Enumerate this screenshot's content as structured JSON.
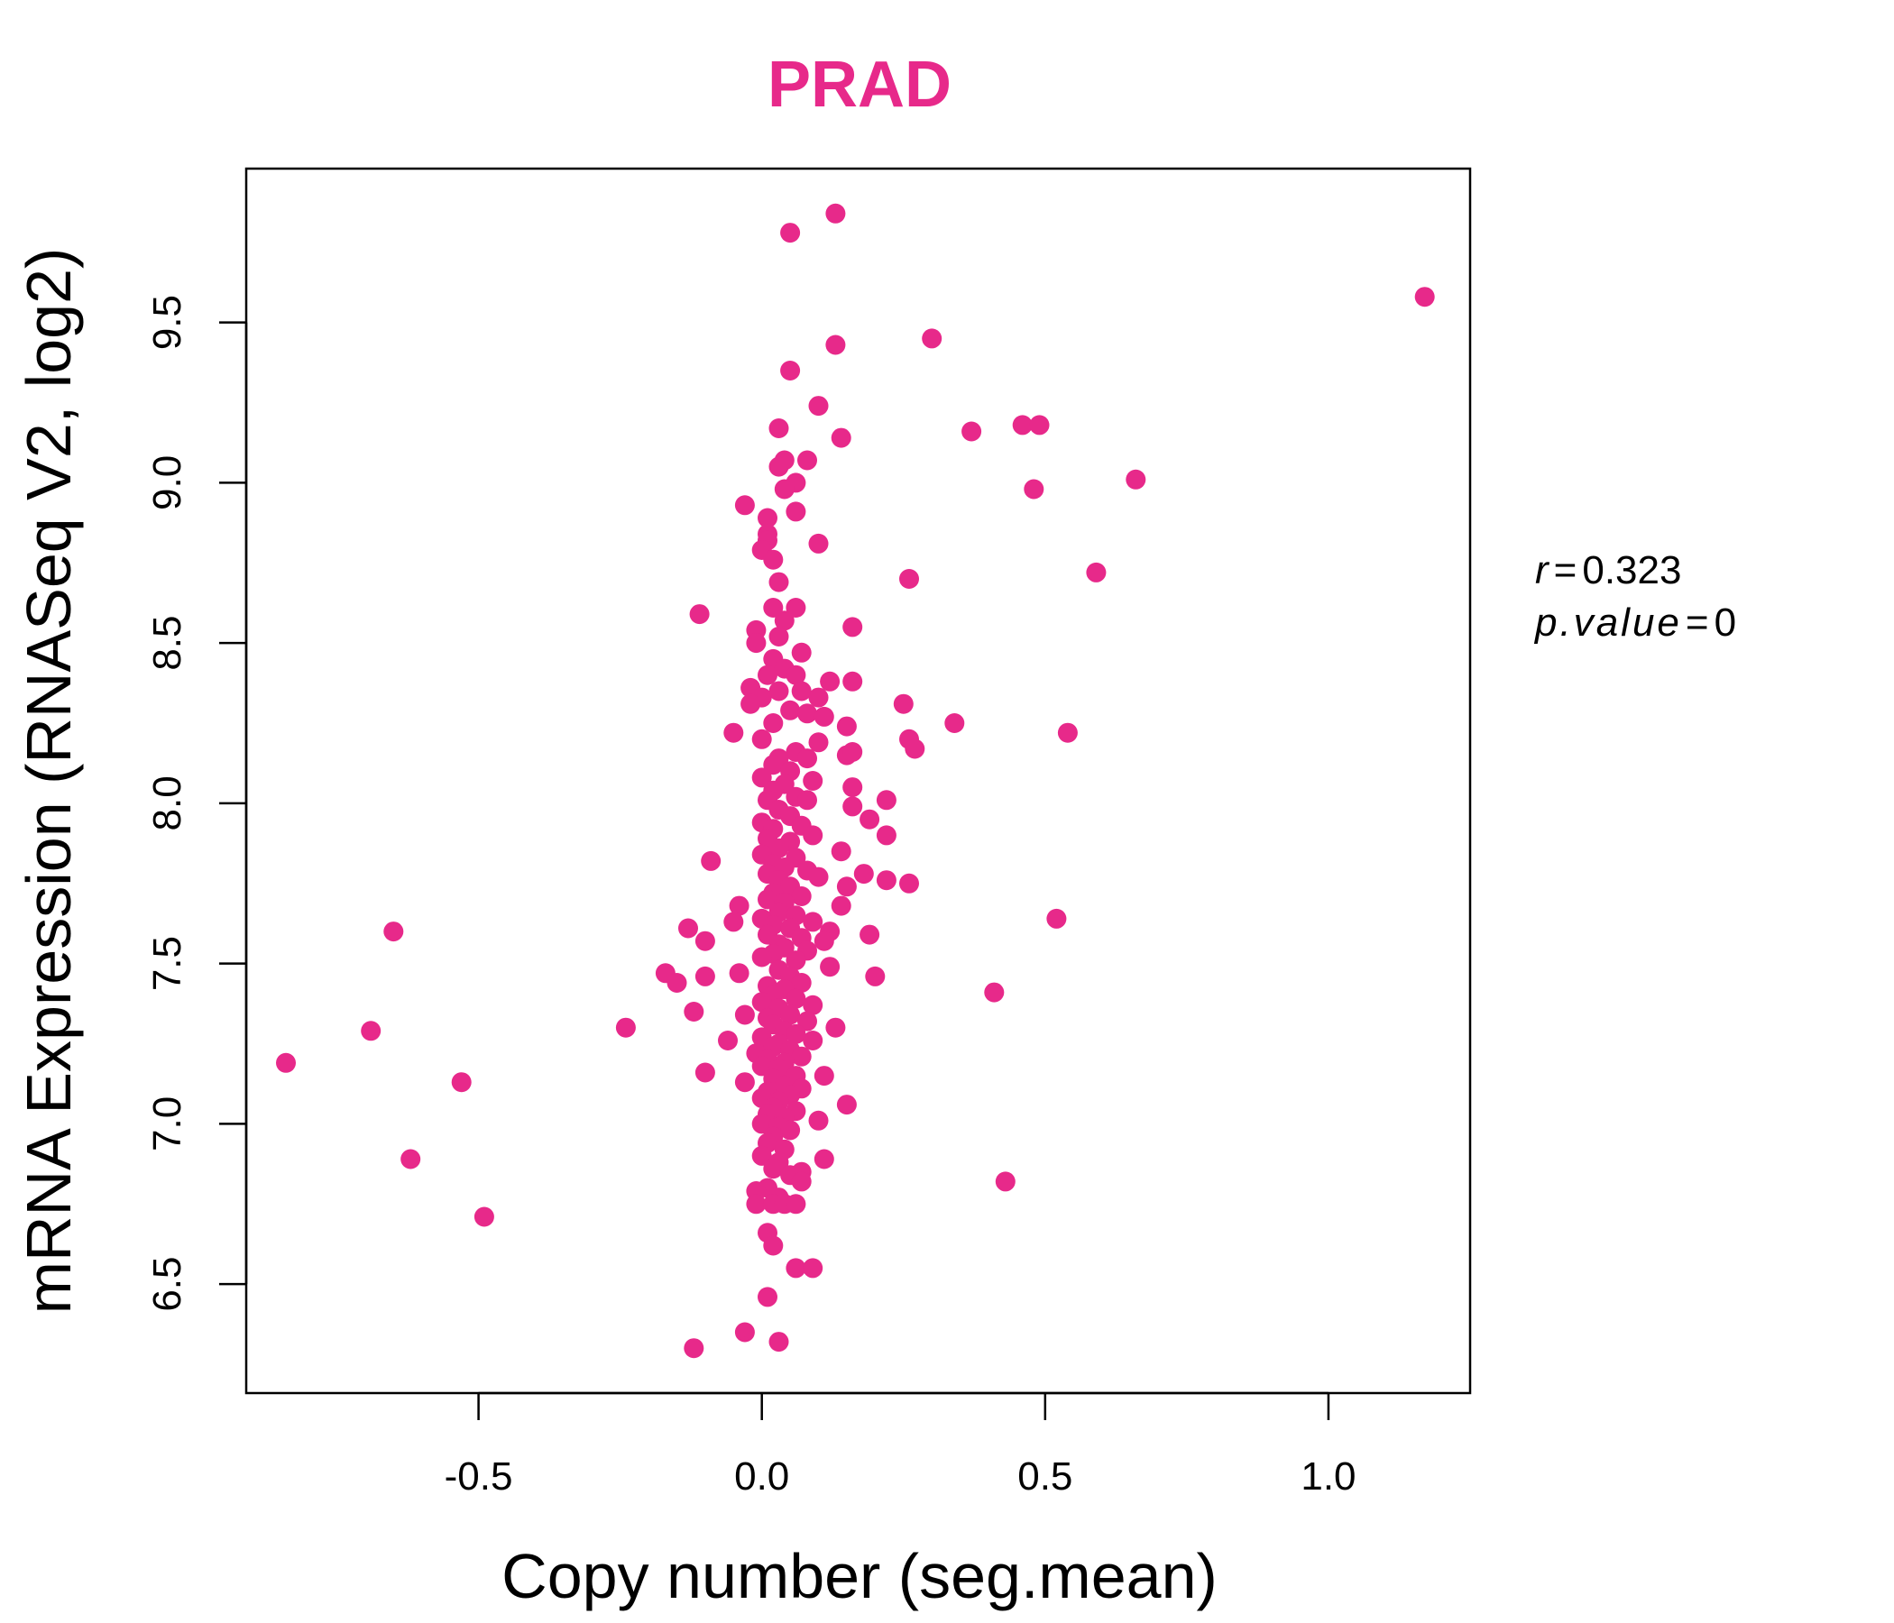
{
  "chart_data": {
    "type": "scatter",
    "title": "PRAD",
    "xlabel": "Copy number (seg.mean)",
    "ylabel": "mRNA Expression (RNASeq V2, log2)",
    "xlim": [
      -0.91,
      1.25
    ],
    "ylim": [
      6.16,
      9.98
    ],
    "xticks": [
      -0.5,
      0.0,
      0.5,
      1.0
    ],
    "xtick_labels": [
      "-0.5",
      "0.0",
      "0.5",
      "1.0"
    ],
    "yticks": [
      6.5,
      7.0,
      7.5,
      8.0,
      8.5,
      9.0,
      9.5
    ],
    "ytick_labels": [
      "6.5",
      "7.0",
      "7.5",
      "8.0",
      "8.5",
      "9.0",
      "9.5"
    ],
    "grid": false,
    "point_color": "#e7298a",
    "annotations": {
      "r_label": "r",
      "r_value": "0.323",
      "p_label": "p.value",
      "p_value": "0"
    },
    "points": [
      [
        0.13,
        9.84
      ],
      [
        0.05,
        9.78
      ],
      [
        1.17,
        9.58
      ],
      [
        0.3,
        9.45
      ],
      [
        0.13,
        9.43
      ],
      [
        0.05,
        9.35
      ],
      [
        0.1,
        9.24
      ],
      [
        0.46,
        9.18
      ],
      [
        0.49,
        9.18
      ],
      [
        0.03,
        9.17
      ],
      [
        0.37,
        9.16
      ],
      [
        0.14,
        9.14
      ],
      [
        0.04,
        9.07
      ],
      [
        0.08,
        9.07
      ],
      [
        0.03,
        9.05
      ],
      [
        0.06,
        9.0
      ],
      [
        0.66,
        9.01
      ],
      [
        0.04,
        8.98
      ],
      [
        0.48,
        8.98
      ],
      [
        -0.03,
        8.93
      ],
      [
        0.06,
        8.91
      ],
      [
        0.01,
        8.89
      ],
      [
        0.01,
        8.84
      ],
      [
        0.01,
        8.82
      ],
      [
        0.1,
        8.81
      ],
      [
        0.0,
        8.79
      ],
      [
        0.02,
        8.76
      ],
      [
        0.59,
        8.72
      ],
      [
        0.26,
        8.7
      ],
      [
        0.03,
        8.69
      ],
      [
        -0.11,
        8.59
      ],
      [
        0.02,
        8.61
      ],
      [
        0.06,
        8.61
      ],
      [
        0.04,
        8.57
      ],
      [
        0.16,
        8.55
      ],
      [
        -0.01,
        8.54
      ],
      [
        0.03,
        8.52
      ],
      [
        -0.01,
        8.5
      ],
      [
        0.07,
        8.47
      ],
      [
        0.02,
        8.45
      ],
      [
        0.04,
        8.42
      ],
      [
        0.01,
        8.4
      ],
      [
        0.06,
        8.4
      ],
      [
        0.12,
        8.38
      ],
      [
        0.16,
        8.38
      ],
      [
        -0.02,
        8.36
      ],
      [
        0.03,
        8.35
      ],
      [
        0.07,
        8.35
      ],
      [
        0.1,
        8.33
      ],
      [
        0.0,
        8.33
      ],
      [
        -0.02,
        8.31
      ],
      [
        0.25,
        8.31
      ],
      [
        0.05,
        8.29
      ],
      [
        0.08,
        8.28
      ],
      [
        0.11,
        8.27
      ],
      [
        0.02,
        8.25
      ],
      [
        0.34,
        8.25
      ],
      [
        0.15,
        8.24
      ],
      [
        -0.05,
        8.22
      ],
      [
        0.54,
        8.22
      ],
      [
        0.26,
        8.2
      ],
      [
        0.0,
        8.2
      ],
      [
        0.1,
        8.19
      ],
      [
        0.27,
        8.17
      ],
      [
        0.06,
        8.16
      ],
      [
        0.15,
        8.15
      ],
      [
        0.16,
        8.16
      ],
      [
        0.03,
        8.14
      ],
      [
        0.08,
        8.14
      ],
      [
        0.02,
        8.12
      ],
      [
        0.05,
        8.1
      ],
      [
        0.0,
        8.08
      ],
      [
        0.09,
        8.07
      ],
      [
        0.04,
        8.06
      ],
      [
        0.16,
        8.05
      ],
      [
        0.02,
        8.04
      ],
      [
        0.06,
        8.02
      ],
      [
        0.01,
        8.01
      ],
      [
        0.22,
        8.01
      ],
      [
        0.08,
        8.01
      ],
      [
        0.16,
        7.99
      ],
      [
        0.03,
        7.98
      ],
      [
        0.05,
        7.96
      ],
      [
        0.19,
        7.95
      ],
      [
        0.0,
        7.94
      ],
      [
        0.07,
        7.93
      ],
      [
        0.02,
        7.92
      ],
      [
        0.09,
        7.9
      ],
      [
        0.22,
        7.9
      ],
      [
        0.01,
        7.89
      ],
      [
        0.05,
        7.88
      ],
      [
        0.03,
        7.86
      ],
      [
        0.14,
        7.85
      ],
      [
        0.0,
        7.84
      ],
      [
        0.06,
        7.83
      ],
      [
        -0.09,
        7.82
      ],
      [
        0.02,
        7.81
      ],
      [
        0.04,
        7.8
      ],
      [
        0.08,
        7.79
      ],
      [
        0.01,
        7.78
      ],
      [
        0.18,
        7.78
      ],
      [
        0.1,
        7.77
      ],
      [
        0.03,
        7.76
      ],
      [
        0.22,
        7.76
      ],
      [
        0.26,
        7.75
      ],
      [
        0.05,
        7.74
      ],
      [
        0.15,
        7.74
      ],
      [
        0.02,
        7.72
      ],
      [
        0.07,
        7.71
      ],
      [
        0.01,
        7.7
      ],
      [
        0.04,
        7.69
      ],
      [
        0.14,
        7.68
      ],
      [
        -0.04,
        7.68
      ],
      [
        0.03,
        7.66
      ],
      [
        0.06,
        7.65
      ],
      [
        0.0,
        7.64
      ],
      [
        -0.05,
        7.63
      ],
      [
        0.52,
        7.64
      ],
      [
        0.09,
        7.63
      ],
      [
        0.02,
        7.62
      ],
      [
        0.05,
        7.61
      ],
      [
        -0.13,
        7.61
      ],
      [
        0.12,
        7.6
      ],
      [
        0.01,
        7.59
      ],
      [
        0.19,
        7.59
      ],
      [
        0.07,
        7.58
      ],
      [
        -0.1,
        7.57
      ],
      [
        0.11,
        7.57
      ],
      [
        0.03,
        7.56
      ],
      [
        0.04,
        7.55
      ],
      [
        0.08,
        7.54
      ],
      [
        0.02,
        7.53
      ],
      [
        0.0,
        7.52
      ],
      [
        0.06,
        7.51
      ],
      [
        0.12,
        7.49
      ],
      [
        0.03,
        7.48
      ],
      [
        -0.17,
        7.47
      ],
      [
        -0.04,
        7.47
      ],
      [
        0.05,
        7.46
      ],
      [
        -0.1,
        7.46
      ],
      [
        0.2,
        7.46
      ],
      [
        0.07,
        7.44
      ],
      [
        -0.15,
        7.44
      ],
      [
        0.01,
        7.43
      ],
      [
        0.04,
        7.42
      ],
      [
        0.41,
        7.41
      ],
      [
        0.02,
        7.4
      ],
      [
        0.06,
        7.39
      ],
      [
        0.0,
        7.38
      ],
      [
        0.09,
        7.37
      ],
      [
        0.03,
        7.36
      ],
      [
        -0.12,
        7.35
      ],
      [
        0.05,
        7.34
      ],
      [
        -0.03,
        7.34
      ],
      [
        0.01,
        7.33
      ],
      [
        0.08,
        7.32
      ],
      [
        0.02,
        7.31
      ],
      [
        -0.24,
        7.3
      ],
      [
        0.13,
        7.3
      ],
      [
        0.04,
        7.29
      ],
      [
        0.06,
        7.28
      ],
      [
        0.0,
        7.27
      ],
      [
        0.09,
        7.26
      ],
      [
        -0.06,
        7.26
      ],
      [
        0.03,
        7.25
      ],
      [
        0.02,
        7.24
      ],
      [
        0.05,
        7.23
      ],
      [
        -0.01,
        7.22
      ],
      [
        0.07,
        7.21
      ],
      [
        0.01,
        7.2
      ],
      [
        0.04,
        7.19
      ],
      [
        0.0,
        7.18
      ],
      [
        0.03,
        7.17
      ],
      [
        -0.1,
        7.16
      ],
      [
        0.06,
        7.15
      ],
      [
        0.11,
        7.15
      ],
      [
        0.02,
        7.14
      ],
      [
        -0.03,
        7.13
      ],
      [
        0.04,
        7.12
      ],
      [
        0.07,
        7.11
      ],
      [
        0.01,
        7.1
      ],
      [
        0.05,
        7.09
      ],
      [
        0.0,
        7.08
      ],
      [
        0.03,
        7.07
      ],
      [
        0.15,
        7.06
      ],
      [
        0.02,
        7.05
      ],
      [
        0.06,
        7.04
      ],
      [
        0.01,
        7.03
      ],
      [
        0.04,
        7.02
      ],
      [
        0.1,
        7.01
      ],
      [
        0.0,
        7.0
      ],
      [
        0.03,
        6.99
      ],
      [
        0.05,
        6.98
      ],
      [
        0.02,
        6.96
      ],
      [
        0.01,
        6.94
      ],
      [
        0.04,
        6.92
      ],
      [
        0.0,
        6.9
      ],
      [
        0.11,
        6.89
      ],
      [
        0.03,
        6.88
      ],
      [
        0.02,
        6.86
      ],
      [
        0.07,
        6.85
      ],
      [
        0.05,
        6.84
      ],
      [
        0.07,
        6.82
      ],
      [
        0.43,
        6.82
      ],
      [
        0.01,
        6.8
      ],
      [
        -0.01,
        6.79
      ],
      [
        0.03,
        6.77
      ],
      [
        -0.01,
        6.75
      ],
      [
        0.02,
        6.75
      ],
      [
        0.04,
        6.75
      ],
      [
        0.06,
        6.75
      ],
      [
        0.01,
        6.66
      ],
      [
        0.02,
        6.62
      ],
      [
        0.06,
        6.55
      ],
      [
        0.09,
        6.55
      ],
      [
        0.01,
        6.46
      ],
      [
        -0.03,
        6.35
      ],
      [
        0.03,
        6.32
      ],
      [
        -0.12,
        6.3
      ],
      [
        -0.84,
        7.19
      ],
      [
        -0.69,
        7.29
      ],
      [
        -0.65,
        7.6
      ],
      [
        -0.62,
        6.89
      ],
      [
        -0.53,
        7.13
      ],
      [
        -0.49,
        6.71
      ]
    ]
  }
}
